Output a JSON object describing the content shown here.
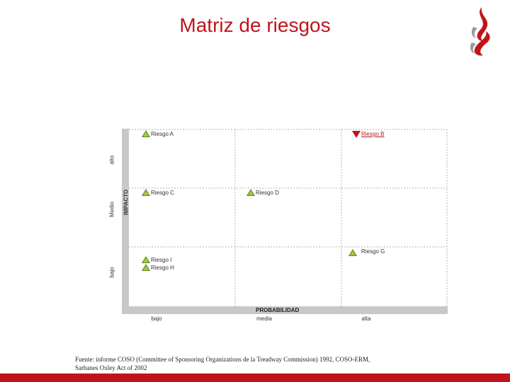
{
  "slide": {
    "title": "Matriz de riesgos",
    "source_line1": "Fuente: informe COSO (Committee of Sponsoring Organizations de la Treadway Commission) 1992, COSO-ERM,",
    "source_line2": "Sarbanes Oxley Act of 2002"
  },
  "matrix": {
    "y_axis_title": "IMPACTO",
    "y_levels": [
      "alto",
      "Medio",
      "bajo"
    ],
    "x_axis_title": "PROBABILIDAD",
    "x_levels": [
      "bajo",
      "media",
      "alta"
    ],
    "risks": {
      "a": "Riesgo A",
      "b": "Riesgo B",
      "c": "Riesgo C",
      "d": "Riesgo D",
      "g": "Riesgo G",
      "i": "Riesgo I",
      "h": "Riesgo H"
    }
  },
  "colors": {
    "accent": "#c0141b",
    "marker_green": "#a8c83a",
    "axis_bar": "#c8c8c8"
  }
}
